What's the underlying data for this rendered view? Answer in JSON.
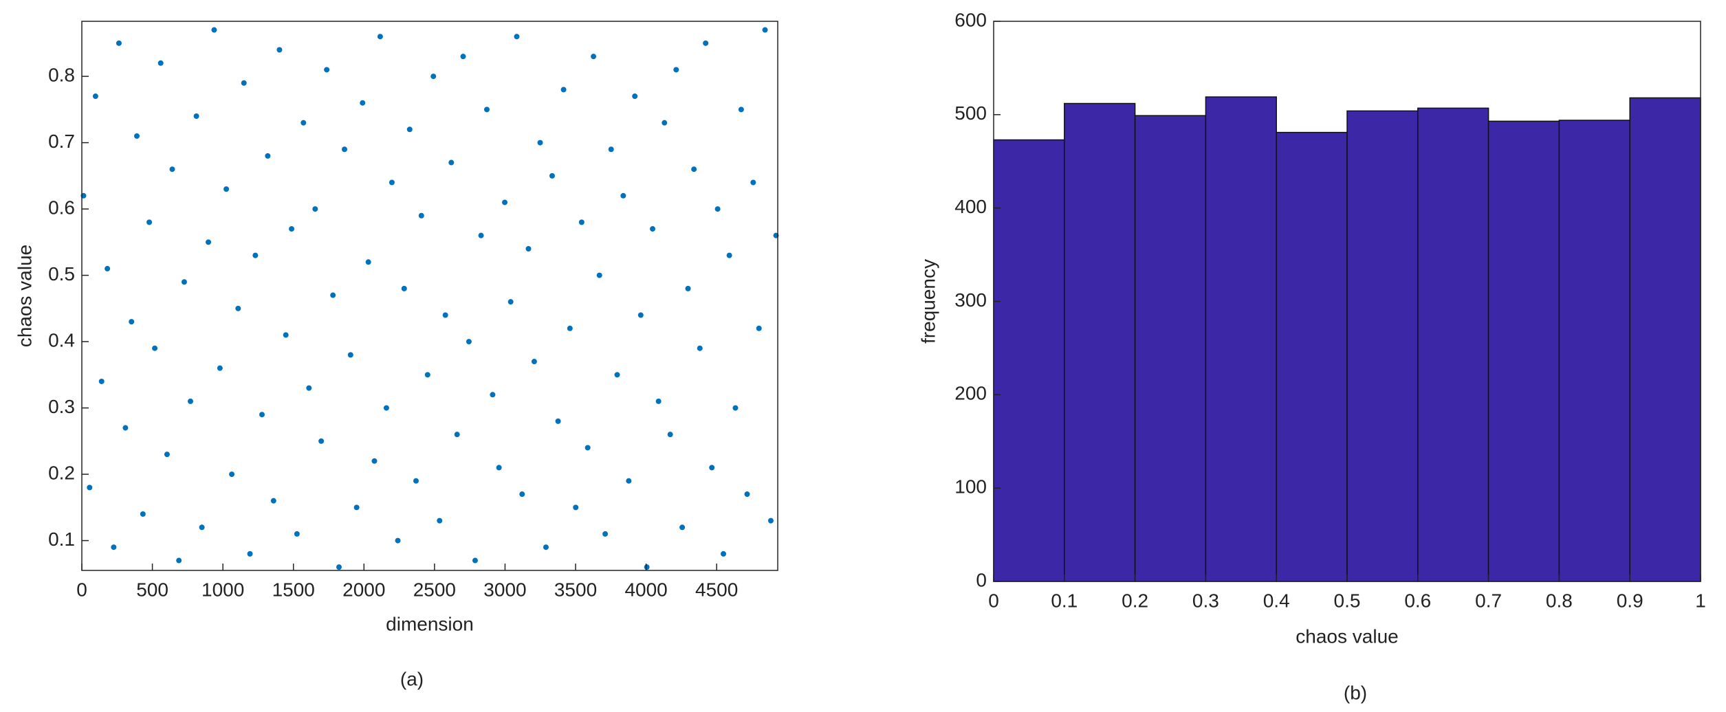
{
  "chart_data": [
    {
      "type": "scatter",
      "x_label": "dimension",
      "y_label": "chaos value",
      "caption": "(a)",
      "color": "#0072BD",
      "x": [
        12,
        55,
        97,
        140,
        181,
        226,
        263,
        309,
        352,
        390,
        433,
        478,
        517,
        559,
        604,
        641,
        688,
        726,
        770,
        812,
        851,
        897,
        938,
        979,
        1024,
        1063,
        1108,
        1149,
        1192,
        1230,
        1277,
        1318,
        1359,
        1401,
        1446,
        1487,
        1525,
        1571,
        1610,
        1654,
        1697,
        1736,
        1780,
        1823,
        1862,
        1905,
        1948,
        1990,
        2031,
        2074,
        2115,
        2159,
        2198,
        2240,
        2285,
        2324,
        2369,
        2407,
        2451,
        2492,
        2536,
        2577,
        2619,
        2660,
        2703,
        2744,
        2788,
        2830,
        2871,
        2912,
        2957,
        2998,
        3040,
        3083,
        3121,
        3166,
        3207,
        3249,
        3290,
        3334,
        3376,
        3415,
        3460,
        3501,
        3543,
        3586,
        3627,
        3669,
        3710,
        3752,
        3795,
        3838,
        3877,
        3920,
        3962,
        4005,
        4046,
        4088,
        4130,
        4171,
        4213,
        4256,
        4297,
        4339,
        4381,
        4422,
        4466,
        4507,
        4548,
        4590,
        4633,
        4674,
        4716,
        4759,
        4800,
        4843,
        4884,
        4921
      ],
      "values": [
        0.62,
        0.18,
        0.77,
        0.34,
        0.51,
        0.09,
        0.85,
        0.27,
        0.43,
        0.71,
        0.14,
        0.58,
        0.39,
        0.82,
        0.23,
        0.66,
        0.07,
        0.49,
        0.31,
        0.74,
        0.12,
        0.55,
        0.87,
        0.36,
        0.63,
        0.2,
        0.45,
        0.79,
        0.08,
        0.53,
        0.29,
        0.68,
        0.16,
        0.84,
        0.41,
        0.57,
        0.11,
        0.73,
        0.33,
        0.6,
        0.25,
        0.81,
        0.47,
        0.06,
        0.69,
        0.38,
        0.15,
        0.76,
        0.52,
        0.22,
        0.86,
        0.3,
        0.64,
        0.1,
        0.48,
        0.72,
        0.19,
        0.59,
        0.35,
        0.8,
        0.13,
        0.44,
        0.67,
        0.26,
        0.83,
        0.4,
        0.07,
        0.56,
        0.75,
        0.32,
        0.21,
        0.61,
        0.46,
        0.86,
        0.17,
        0.54,
        0.37,
        0.7,
        0.09,
        0.65,
        0.28,
        0.78,
        0.42,
        0.15,
        0.58,
        0.24,
        0.83,
        0.5,
        0.11,
        0.69,
        0.35,
        0.62,
        0.19,
        0.77,
        0.44,
        0.06,
        0.57,
        0.31,
        0.73,
        0.26,
        0.81,
        0.12,
        0.48,
        0.66,
        0.39,
        0.85,
        0.21,
        0.6,
        0.08,
        0.53,
        0.3,
        0.75,
        0.17,
        0.64,
        0.42,
        0.87,
        0.13,
        0.56
      ],
      "xlim": [
        0,
        4933
      ],
      "xticks": [
        0,
        500,
        1000,
        1500,
        2000,
        2500,
        3000,
        3500,
        4000,
        4500
      ],
      "ylim": [
        0.055,
        0.883
      ],
      "yticks": [
        0.1,
        0.2,
        0.3,
        0.4,
        0.5,
        0.6,
        0.7,
        0.8
      ]
    },
    {
      "type": "histogram",
      "x_label": "chaos value",
      "y_label": "frequency",
      "caption": "(b)",
      "color": "#3C27A6",
      "bins": [
        0,
        0.1,
        0.2,
        0.3,
        0.4,
        0.5,
        0.6,
        0.7,
        0.8,
        0.9,
        1
      ],
      "values": [
        473,
        512,
        499,
        519,
        481,
        504,
        507,
        493,
        494,
        518
      ],
      "xlim": [
        0,
        1
      ],
      "xticks": [
        0,
        0.1,
        0.2,
        0.3,
        0.4,
        0.5,
        0.6,
        0.7,
        0.8,
        0.9,
        1
      ],
      "ylim": [
        0,
        600
      ],
      "yticks": [
        0,
        100,
        200,
        300,
        400,
        500,
        600
      ]
    }
  ]
}
